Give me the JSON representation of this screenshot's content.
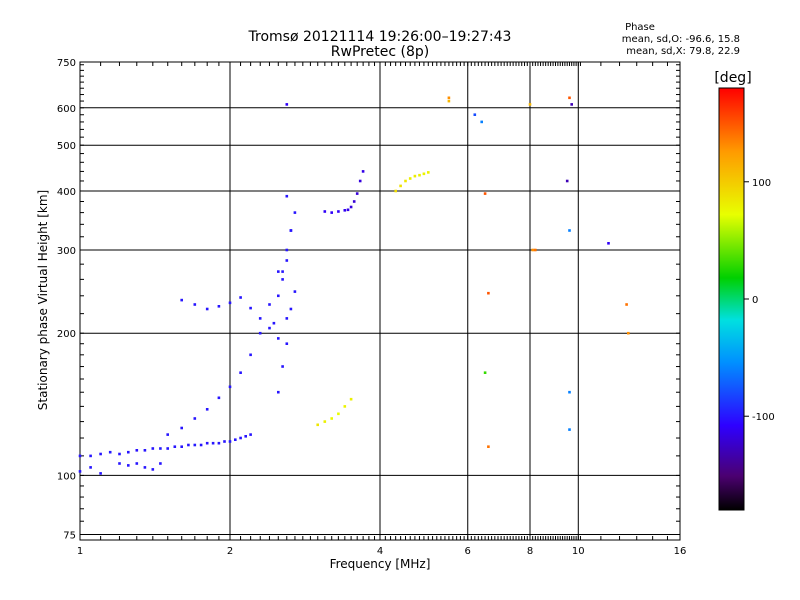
{
  "colors": {
    "background": "#ffffff",
    "axis": "#000000",
    "grid": "#000000"
  },
  "chart_data": {
    "type": "scatter",
    "title": "Tromsø 20121114 19:26:00–19:27:43",
    "subtitle": "RwPretec (8p)",
    "xlabel": "Frequency [MHz]",
    "ylabel": "Stationary phase Virtual Height [km]",
    "x_scale": "log",
    "y_scale": "log",
    "xlim": [
      1,
      16
    ],
    "ylim": [
      73,
      750
    ],
    "grid": true,
    "x_ticks": [
      1,
      2,
      4,
      6,
      8,
      10,
      16
    ],
    "x_tick_labels": [
      "1",
      "2",
      "4",
      "6",
      "8",
      "10",
      "16"
    ],
    "y_ticks": [
      75,
      100,
      200,
      300,
      400,
      500,
      600,
      750
    ],
    "y_tick_labels": [
      "75",
      "100",
      "200",
      "300",
      "400",
      "500",
      "600",
      "750"
    ],
    "phase_stats": {
      "heading": "Phase",
      "line1": "mean, sd,O:  -96.6, 15.8",
      "line2": "mean, sd,X:  79.8, 22.9"
    },
    "colorbar": {
      "label": "[deg]",
      "range": [
        -180,
        180
      ],
      "ticks": [
        100,
        0,
        -100
      ],
      "tick_labels": [
        "100",
        "0",
        "-100"
      ]
    },
    "series": [
      {
        "trace": "low-E",
        "x": [
          1.0,
          1.05,
          1.1,
          1.15,
          1.2,
          1.25,
          1.3,
          1.35,
          1.4,
          1.45,
          1.5,
          1.55,
          1.6,
          1.65,
          1.7,
          1.75,
          1.8,
          1.85,
          1.9,
          1.95,
          2.0,
          2.05,
          2.1,
          2.15,
          2.2
        ],
        "y": [
          110,
          110,
          111,
          112,
          111,
          112,
          113,
          113,
          114,
          114,
          114,
          115,
          115,
          116,
          116,
          116,
          117,
          117,
          117,
          118,
          118,
          119,
          120,
          121,
          122
        ],
        "phase": [
          -100,
          -100,
          -100,
          -98,
          -100,
          -100,
          -102,
          -100,
          -100,
          -98,
          -100,
          -100,
          -100,
          -100,
          -98,
          -100,
          -102,
          -100,
          -100,
          -100,
          -98,
          -100,
          -100,
          -100,
          -100
        ]
      },
      {
        "trace": "sporadic-low",
        "x": [
          1.0,
          1.05,
          1.1,
          1.2,
          1.25,
          1.3,
          1.35,
          1.4,
          1.45
        ],
        "y": [
          102,
          104,
          101,
          106,
          105,
          106,
          104,
          103,
          106
        ],
        "phase": [
          -100,
          -100,
          -100,
          -100,
          -100,
          -100,
          -100,
          -100,
          -100
        ]
      },
      {
        "trace": "F-rise",
        "x": [
          1.5,
          1.6,
          1.7,
          1.8,
          1.9,
          2.0,
          2.1,
          2.2,
          2.3,
          2.4,
          2.5
        ],
        "y": [
          122,
          126,
          132,
          138,
          146,
          154,
          165,
          180,
          200,
          230,
          270
        ],
        "phase": [
          -100,
          -100,
          -100,
          -100,
          -100,
          -100,
          -100,
          -100,
          -100,
          -100,
          -100
        ]
      },
      {
        "trace": "F-mid",
        "x": [
          1.6,
          1.7,
          1.8,
          1.9,
          2.0,
          2.1,
          2.2,
          2.3,
          2.4,
          2.5,
          2.6,
          2.7
        ],
        "y": [
          235,
          230,
          225,
          228,
          232,
          238,
          226,
          215,
          205,
          195,
          215,
          245
        ],
        "phase": [
          -100,
          -100,
          -100,
          -100,
          -100,
          -100,
          -100,
          -100,
          -100,
          -100,
          -100,
          -100
        ]
      },
      {
        "trace": "F-cusp",
        "x": [
          2.45,
          2.5,
          2.55,
          2.6,
          2.65,
          2.7,
          2.5,
          2.55,
          2.6,
          2.65,
          2.55,
          2.6,
          2.65,
          2.6
        ],
        "y": [
          210,
          240,
          270,
          300,
          330,
          360,
          150,
          170,
          190,
          225,
          260,
          285,
          330,
          390
        ],
        "phase": [
          -100,
          -100,
          -100,
          -100,
          -100,
          -100,
          -100,
          -100,
          -100,
          -100,
          -100,
          -100,
          -100,
          -100
        ]
      },
      {
        "trace": "F2-O",
        "x": [
          3.1,
          3.2,
          3.3,
          3.4,
          3.45,
          3.5,
          3.55,
          3.6,
          3.65,
          3.7
        ],
        "y": [
          362,
          360,
          362,
          364,
          365,
          370,
          380,
          395,
          420,
          440
        ],
        "phase": [
          -110,
          -110,
          -110,
          -112,
          -115,
          -118,
          -120,
          -120,
          -118,
          -115
        ]
      },
      {
        "trace": "F-X",
        "x": [
          3.0,
          3.1,
          3.2,
          3.3,
          3.4,
          3.5
        ],
        "y": [
          128,
          130,
          132,
          135,
          140,
          145
        ],
        "phase": [
          85,
          80,
          75,
          72,
          78,
          80
        ]
      },
      {
        "trace": "F-X-high",
        "x": [
          4.3,
          4.4,
          4.5,
          4.6,
          4.7,
          4.8,
          4.9,
          5.0
        ],
        "y": [
          400,
          410,
          420,
          425,
          430,
          432,
          435,
          438
        ],
        "phase": [
          90,
          88,
          85,
          80,
          82,
          80,
          78,
          80
        ]
      },
      {
        "trace": "scatter-high",
        "x": [
          2.6,
          5.5,
          5.5,
          6.2,
          6.4,
          8.0,
          8.1,
          9.6,
          9.7,
          9.5,
          11.5,
          12.5,
          12.6,
          9.6,
          9.6,
          6.5,
          6.6,
          8.2,
          9.6,
          6.6,
          6.5
        ],
        "y": [
          610,
          630,
          620,
          580,
          560,
          610,
          300,
          630,
          610,
          420,
          310,
          230,
          200,
          150,
          125,
          165,
          115,
          300,
          330,
          243,
          395
        ],
        "phase": [
          -110,
          130,
          110,
          -80,
          -60,
          110,
          130,
          150,
          -130,
          -130,
          -110,
          140,
          130,
          -60,
          -60,
          30,
          140,
          140,
          -60,
          150,
          150
        ]
      }
    ]
  }
}
